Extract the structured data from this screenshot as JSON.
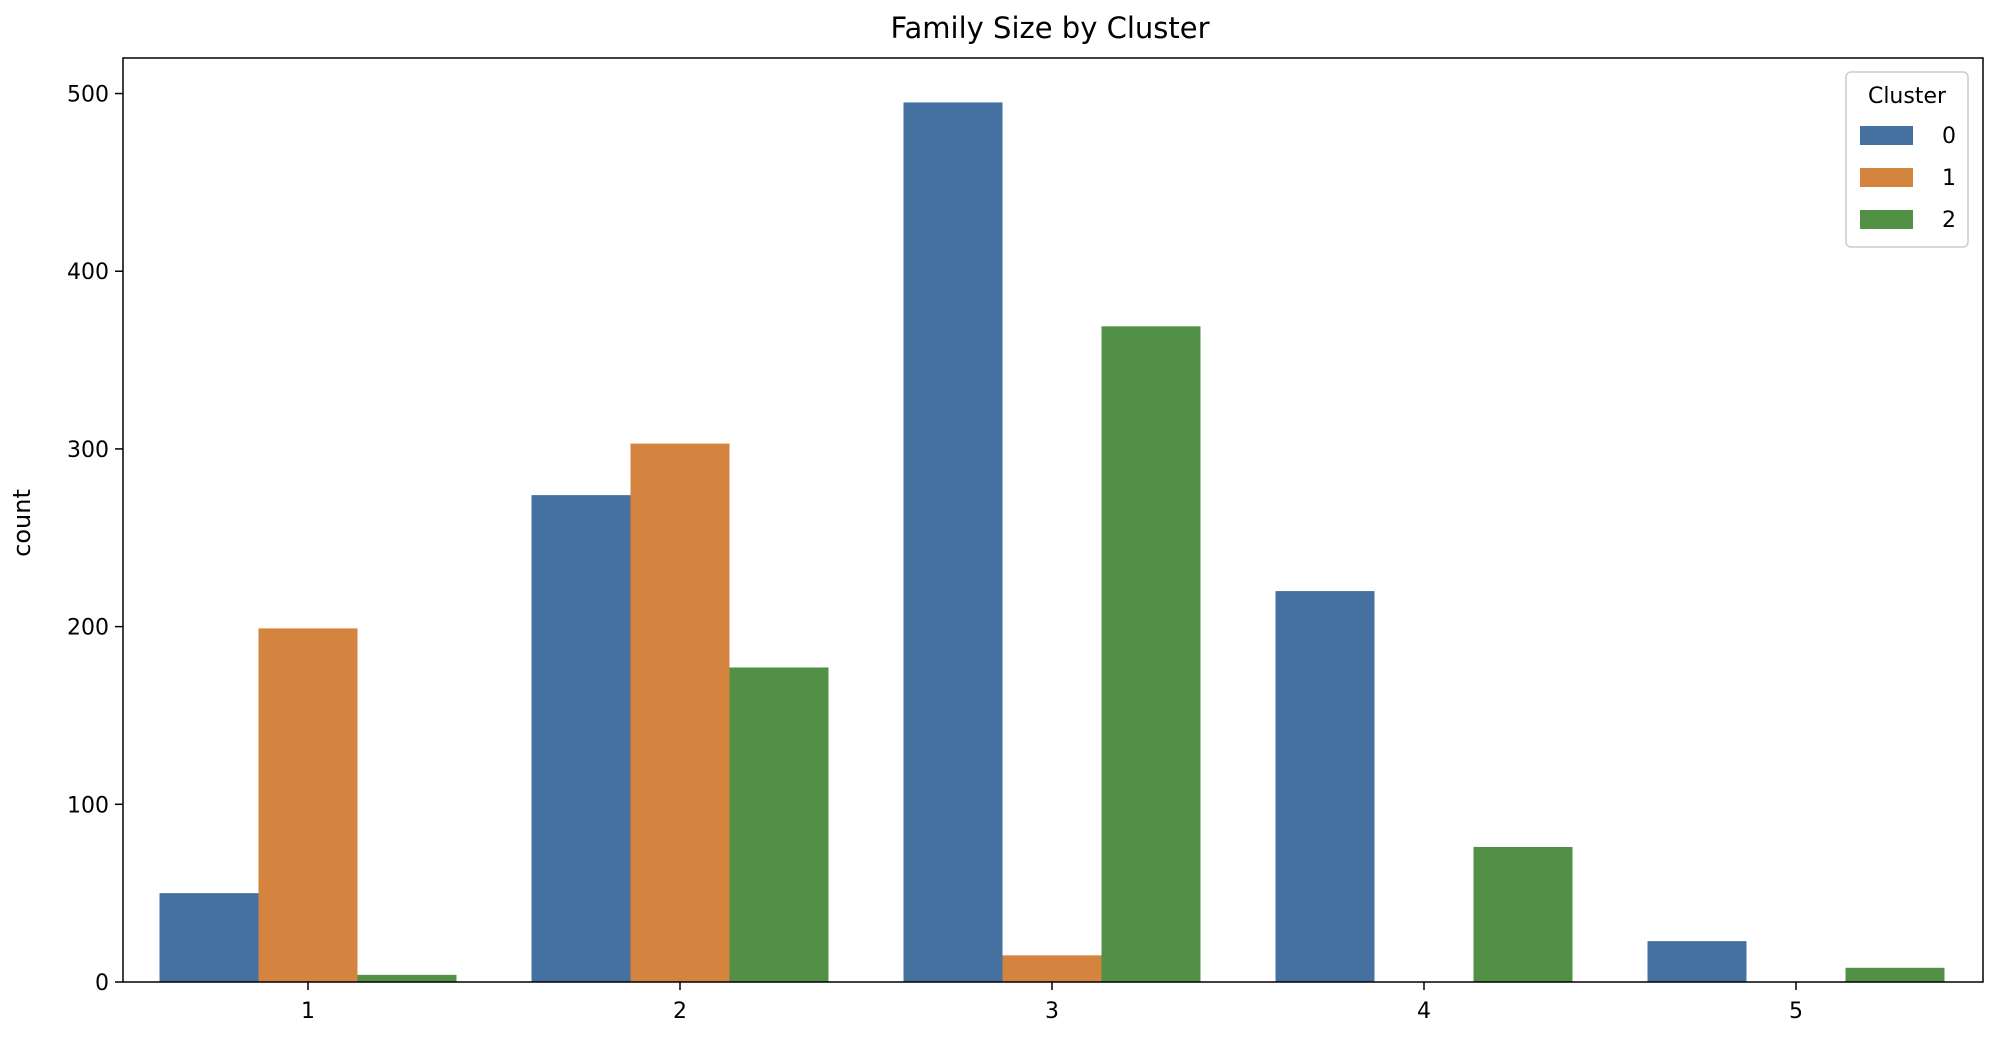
{
  "chart_data": {
    "type": "bar",
    "title": "Family Size by Cluster",
    "xlabel": "",
    "ylabel": "count",
    "categories": [
      "1",
      "2",
      "3",
      "4",
      "5"
    ],
    "series": [
      {
        "name": "0",
        "color": "#4471a0",
        "values": [
          50,
          274,
          495,
          220,
          23
        ]
      },
      {
        "name": "1",
        "color": "#d5843f",
        "values": [
          199,
          303,
          15,
          0,
          0
        ]
      },
      {
        "name": "2",
        "color": "#519045",
        "values": [
          4,
          177,
          369,
          76,
          8
        ]
      }
    ],
    "ylim": [
      0,
      520
    ],
    "yticks": [
      0,
      100,
      200,
      300,
      400,
      500
    ],
    "legend": {
      "title": "Cluster",
      "position": "top-right"
    },
    "grid": false
  }
}
